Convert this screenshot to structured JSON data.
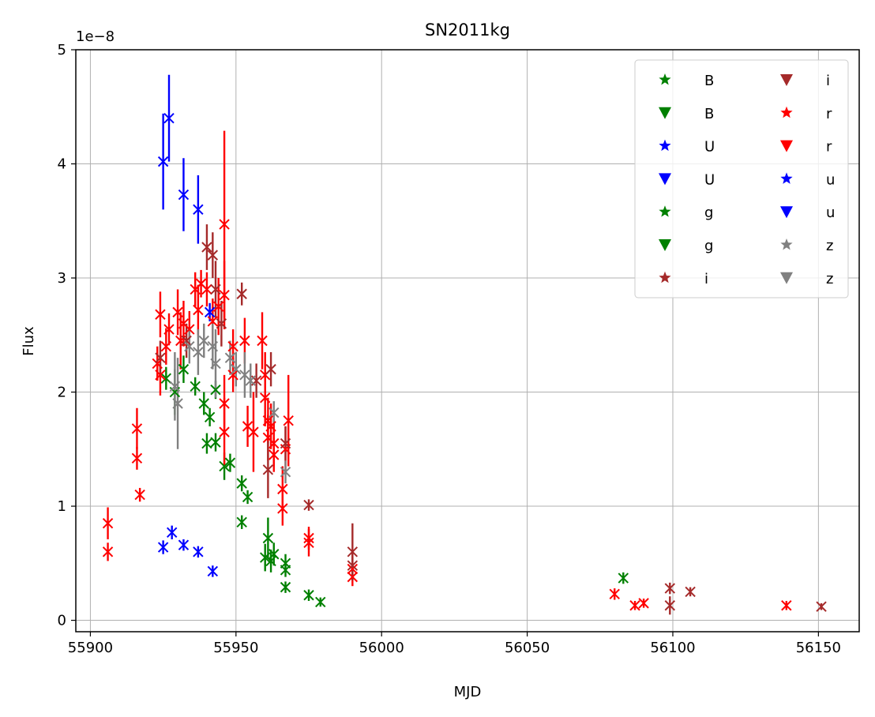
{
  "chart_data": {
    "type": "scatter",
    "title": "SN2011kg",
    "xlabel": "MJD",
    "ylabel": "Flux",
    "y_offset_label": "1e−8",
    "xlim": [
      55895,
      56164
    ],
    "ylim": [
      -1e-09,
      5e-08
    ],
    "xticks": [
      55900,
      55950,
      56000,
      56050,
      56100,
      56150
    ],
    "xtick_labels": [
      "55900",
      "55950",
      "56000",
      "56050",
      "56100",
      "56150"
    ],
    "yticks": [
      0,
      1e-08,
      2e-08,
      3e-08,
      4e-08,
      5e-08
    ],
    "ytick_labels": [
      "0",
      "1",
      "2",
      "3",
      "4",
      "5"
    ],
    "grid": true,
    "legend_position": "top-right",
    "legend_columns": 2,
    "legend": [
      {
        "label": "B",
        "color": "#008000",
        "marker": "star"
      },
      {
        "label": "B",
        "color": "#008000",
        "marker": "triangle-down"
      },
      {
        "label": "U",
        "color": "#0000ff",
        "marker": "star"
      },
      {
        "label": "U",
        "color": "#0000ff",
        "marker": "triangle-down"
      },
      {
        "label": "g",
        "color": "#008000",
        "marker": "star"
      },
      {
        "label": "g",
        "color": "#008000",
        "marker": "triangle-down"
      },
      {
        "label": "i",
        "color": "#a52a2a",
        "marker": "star"
      },
      {
        "label": "i",
        "color": "#a52a2a",
        "marker": "triangle-down"
      },
      {
        "label": "r",
        "color": "#ff0000",
        "marker": "star"
      },
      {
        "label": "r",
        "color": "#ff0000",
        "marker": "triangle-down"
      },
      {
        "label": "u",
        "color": "#0000ff",
        "marker": "star"
      },
      {
        "label": "u",
        "color": "#0000ff",
        "marker": "triangle-down"
      },
      {
        "label": "z",
        "color": "#808080",
        "marker": "star"
      },
      {
        "label": "z",
        "color": "#808080",
        "marker": "triangle-down"
      }
    ],
    "series": [
      {
        "name": "U",
        "color": "#0000ff",
        "points": [
          [
            55925,
            4.02e-08,
            4.2e-09
          ],
          [
            55927,
            4.4e-08,
            3.8e-09
          ],
          [
            55932,
            3.73e-08,
            3.2e-09
          ],
          [
            55937,
            3.6e-08,
            3e-09
          ],
          [
            55925,
            6.4e-09,
            6e-10
          ],
          [
            55928,
            7.7e-09,
            6e-10
          ],
          [
            55932,
            6.6e-09,
            5e-10
          ],
          [
            55937,
            6e-09,
            5e-10
          ],
          [
            55942,
            4.3e-09,
            5e-10
          ],
          [
            55941,
            2.7e-08,
            8e-10
          ]
        ]
      },
      {
        "name": "B",
        "color": "#008000",
        "points": [
          [
            55926,
            2.12e-08,
            1e-09
          ],
          [
            55929,
            2e-08,
            2e-09
          ],
          [
            55932,
            2.2e-08,
            1.2e-09
          ],
          [
            55936,
            2.05e-08,
            8e-10
          ],
          [
            55939,
            1.9e-08,
            1e-09
          ],
          [
            55941,
            1.78e-08,
            8e-10
          ],
          [
            55943,
            2.02e-08,
            8e-10
          ],
          [
            55940,
            1.55e-08,
            9e-10
          ],
          [
            55943,
            1.56e-08,
            8e-10
          ],
          [
            55946,
            1.35e-08,
            1.2e-09
          ],
          [
            55948,
            1.38e-08,
            8e-10
          ],
          [
            55952,
            1.2e-08,
            7e-10
          ],
          [
            55954,
            1.08e-08,
            6e-10
          ],
          [
            55952,
            8.6e-09,
            6e-10
          ],
          [
            55961,
            7.2e-09,
            1.8e-09
          ],
          [
            55960,
            5.5e-09,
            1.2e-09
          ],
          [
            55962,
            5.2e-09,
            1e-09
          ],
          [
            55963,
            5.8e-09,
            1e-09
          ],
          [
            55967,
            5e-09,
            8e-10
          ],
          [
            55967,
            4.4e-09,
            6e-10
          ],
          [
            55967,
            2.9e-09,
            5e-10
          ],
          [
            55975,
            2.2e-09,
            5e-10
          ],
          [
            55979,
            1.6e-09,
            4e-10
          ],
          [
            56083,
            3.7e-09,
            5e-10
          ]
        ]
      },
      {
        "name": "r",
        "color": "#ff0000",
        "points": [
          [
            55906,
            8.5e-09,
            1.4e-09
          ],
          [
            55906,
            6e-09,
            8e-10
          ],
          [
            55916,
            1.68e-08,
            1.8e-09
          ],
          [
            55916,
            1.42e-08,
            1e-09
          ],
          [
            55917,
            1.1e-08,
            6e-10
          ],
          [
            55923,
            2.25e-08,
            1.5e-09
          ],
          [
            55924,
            2.15e-08,
            1.8e-09
          ],
          [
            55924,
            2.68e-08,
            2e-09
          ],
          [
            55926,
            2.4e-08,
            1.6e-09
          ],
          [
            55927,
            2.55e-08,
            1.4e-09
          ],
          [
            55930,
            2.7e-08,
            2e-09
          ],
          [
            55931,
            2.45e-08,
            2.5e-09
          ],
          [
            55932,
            2.6e-08,
            2e-09
          ],
          [
            55934,
            2.55e-08,
            1.6e-09
          ],
          [
            55936,
            2.9e-08,
            1.5e-09
          ],
          [
            55937,
            2.72e-08,
            2.2e-09
          ],
          [
            55938,
            2.95e-08,
            1.2e-09
          ],
          [
            55940,
            2.9e-08,
            1.5e-09
          ],
          [
            55942,
            2.62e-08,
            2e-09
          ],
          [
            55944,
            2.75e-08,
            2.5e-09
          ],
          [
            55946,
            3.47e-08,
            8.2e-09
          ],
          [
            55946,
            2.85e-08,
            3e-09
          ],
          [
            55946,
            1.9e-08,
            2.5e-09
          ],
          [
            55946,
            1.65e-08,
            3e-09
          ],
          [
            55949,
            2.4e-08,
            1.5e-09
          ],
          [
            55949,
            2.15e-08,
            1.5e-09
          ],
          [
            55953,
            2.45e-08,
            2e-09
          ],
          [
            55954,
            1.7e-08,
            1.8e-09
          ],
          [
            55956,
            1.65e-08,
            3.5e-09
          ],
          [
            55959,
            2.45e-08,
            2.5e-09
          ],
          [
            55960,
            2.15e-08,
            2e-09
          ],
          [
            55960,
            1.95e-08,
            2.5e-09
          ],
          [
            55961,
            1.75e-08,
            2e-09
          ],
          [
            55961,
            1.6e-08,
            2e-09
          ],
          [
            55962,
            1.7e-08,
            2e-09
          ],
          [
            55963,
            1.55e-08,
            2e-09
          ],
          [
            55963,
            1.45e-08,
            1.5e-09
          ],
          [
            55966,
            1.15e-08,
            2e-09
          ],
          [
            55966,
            9.8e-09,
            1.5e-09
          ],
          [
            55968,
            1.75e-08,
            4e-09
          ],
          [
            55967,
            1.5e-08,
            2e-09
          ],
          [
            55975,
            7.2e-09,
            1e-09
          ],
          [
            55975,
            6.8e-09,
            1.2e-09
          ],
          [
            55990,
            4.5e-09,
            1e-09
          ],
          [
            55990,
            3.8e-09,
            8e-10
          ],
          [
            56080,
            2.3e-09,
            5e-10
          ],
          [
            56087,
            1.3e-09,
            4e-10
          ],
          [
            56090,
            1.5e-09,
            4e-10
          ],
          [
            56139,
            1.3e-09,
            4e-10
          ]
        ]
      },
      {
        "name": "i",
        "color": "#a52a2a",
        "points": [
          [
            55924,
            2.3e-08,
            1.5e-09
          ],
          [
            55933,
            2.45e-08,
            1.5e-09
          ],
          [
            55940,
            3.27e-08,
            2e-09
          ],
          [
            55942,
            3.2e-08,
            2e-09
          ],
          [
            55943,
            2.9e-08,
            2.5e-09
          ],
          [
            55945,
            2.6e-08,
            2e-09
          ],
          [
            55952,
            2.86e-08,
            1e-09
          ],
          [
            55957,
            2.1e-08,
            1.5e-09
          ],
          [
            55962,
            2.2e-08,
            1.5e-09
          ],
          [
            55961,
            1.32e-08,
            2.5e-09
          ],
          [
            55967,
            1.55e-08,
            1.5e-09
          ],
          [
            55975,
            1.01e-08,
            5e-10
          ],
          [
            55990,
            6e-09,
            2.5e-09
          ],
          [
            55990,
            4.8e-09,
            1e-09
          ],
          [
            56099,
            2.8e-09,
            5e-10
          ],
          [
            56099,
            1.3e-09,
            8e-10
          ],
          [
            56106,
            2.5e-09,
            4e-10
          ],
          [
            56151,
            1.2e-09,
            3e-10
          ]
        ]
      },
      {
        "name": "z",
        "color": "#808080",
        "points": [
          [
            55929,
            2.05e-08,
            3e-09
          ],
          [
            55930,
            1.9e-08,
            4e-09
          ],
          [
            55934,
            2.4e-08,
            1.5e-09
          ],
          [
            55937,
            2.35e-08,
            2e-09
          ],
          [
            55939,
            2.45e-08,
            1.5e-09
          ],
          [
            55942,
            2.4e-08,
            2e-09
          ],
          [
            55943,
            2.25e-08,
            3e-09
          ],
          [
            55948,
            2.3e-08,
            1.5e-09
          ],
          [
            55950,
            2.2e-08,
            1.5e-09
          ],
          [
            55953,
            2.15e-08,
            2e-09
          ],
          [
            55955,
            2.1e-08,
            1.5e-09
          ],
          [
            55963,
            1.82e-08,
            1e-09
          ],
          [
            55967,
            1.3e-08,
            1e-09
          ]
        ]
      }
    ]
  }
}
